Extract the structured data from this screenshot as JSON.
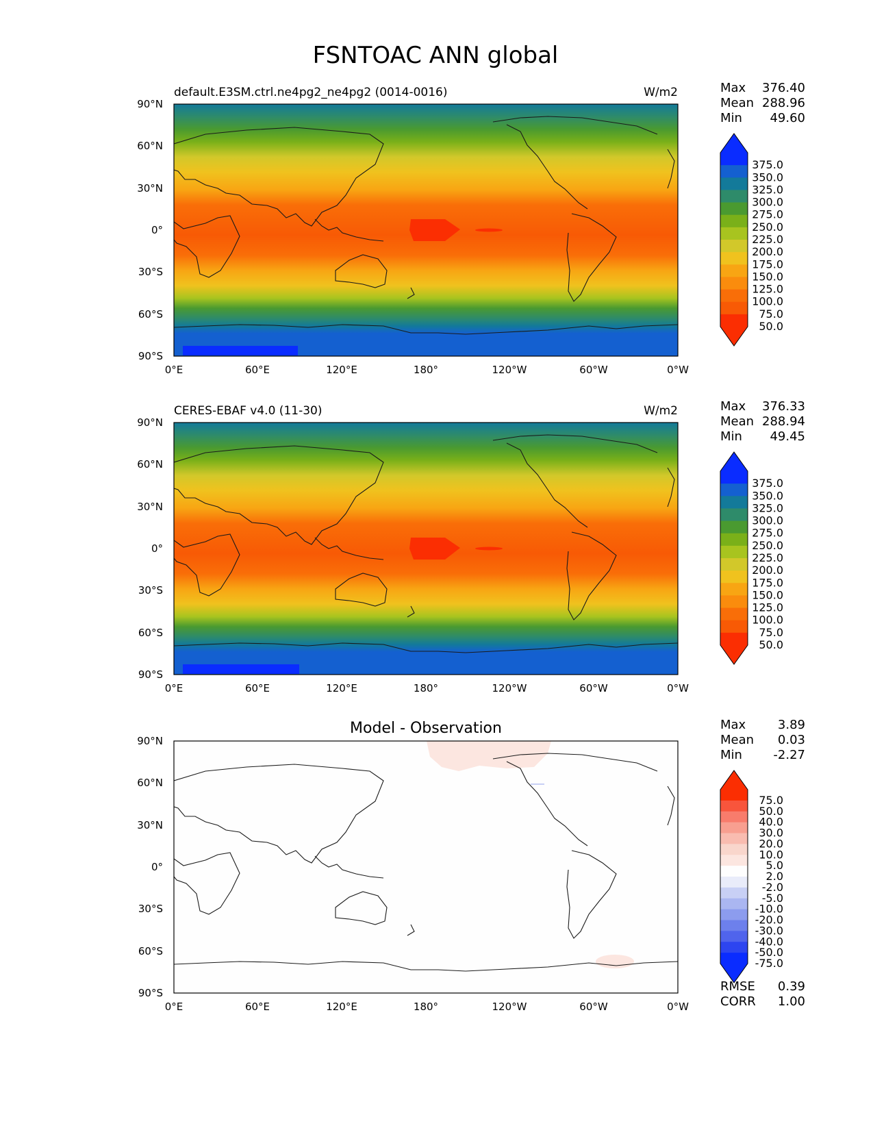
{
  "figure": {
    "title": "FSNTOAC ANN global"
  },
  "axes": {
    "lon_ticks": [
      "0°E",
      "60°E",
      "120°E",
      "180°",
      "120°W",
      "60°W",
      "0°W"
    ],
    "lat_ticks": [
      "90°N",
      "60°N",
      "30°N",
      "0°",
      "30°S",
      "60°S",
      "90°S"
    ]
  },
  "panels": [
    {
      "id": "model",
      "left_title": "default.E3SM.ctrl.ne4pg2_ne4pg2 (0014-0016)",
      "units": "W/m2",
      "center_title": "",
      "stats": [
        {
          "label": "Max",
          "value": "376.40"
        },
        {
          "label": "Mean",
          "value": "288.96"
        },
        {
          "label": "Min",
          "value": "49.60"
        }
      ],
      "colorbar_labels": [
        "375.0",
        "350.0",
        "325.0",
        "300.0",
        "275.0",
        "250.0",
        "225.0",
        "200.0",
        "175.0",
        "150.0",
        "125.0",
        "100.0",
        "75.0",
        "50.0"
      ],
      "extra": []
    },
    {
      "id": "obs",
      "left_title": "CERES-EBAF v4.0 (11-30)",
      "units": "W/m2",
      "center_title": "",
      "stats": [
        {
          "label": "Max",
          "value": "376.33"
        },
        {
          "label": "Mean",
          "value": "288.94"
        },
        {
          "label": "Min",
          "value": "49.45"
        }
      ],
      "colorbar_labels": [
        "375.0",
        "350.0",
        "325.0",
        "300.0",
        "275.0",
        "250.0",
        "225.0",
        "200.0",
        "175.0",
        "150.0",
        "125.0",
        "100.0",
        "75.0",
        "50.0"
      ],
      "extra": []
    },
    {
      "id": "diff",
      "left_title": "",
      "units": "",
      "center_title": "Model - Observation",
      "stats": [
        {
          "label": "Max",
          "value": "3.89"
        },
        {
          "label": "Mean",
          "value": "0.03"
        },
        {
          "label": "Min",
          "value": "-2.27"
        }
      ],
      "colorbar_labels": [
        "75.0",
        "50.0",
        "40.0",
        "30.0",
        "20.0",
        "10.0",
        "5.0",
        "2.0",
        "-2.0",
        "-5.0",
        "-10.0",
        "-20.0",
        "-30.0",
        "-40.0",
        "-50.0",
        "-75.0"
      ],
      "extra": [
        {
          "label": "RMSE",
          "value": "0.39"
        },
        {
          "label": "CORR",
          "value": "1.00"
        }
      ]
    }
  ],
  "colors": {
    "field_scale": [
      "#0a2cff",
      "#1460d0",
      "#137a9a",
      "#2e8b6a",
      "#4a9a30",
      "#7ab019",
      "#a8c41f",
      "#d2c82a",
      "#f0c21e",
      "#f8a513",
      "#fa8c0d",
      "#f96e08",
      "#f85a05",
      "#fb2e02"
    ],
    "diff_scale": [
      "#fb2e02",
      "#f8553c",
      "#f87c6c",
      "#f89f90",
      "#f9bcb0",
      "#f9d6cc",
      "#fce6e0",
      "#fefefe",
      "#e9ecfa",
      "#c8d0f5",
      "#aab6f1",
      "#8c9cee",
      "#6d80ec",
      "#5064ec",
      "#2d45f0",
      "#0a2cff"
    ]
  }
}
